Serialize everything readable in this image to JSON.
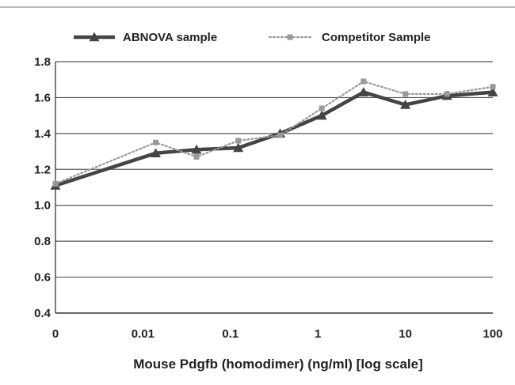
{
  "chart_data": {
    "type": "line",
    "xlabel": "Mouse Pdgfb (homodimer) (ng/ml) [log scale]",
    "ylabel": "",
    "x_scale": "log",
    "x_tick_labels": [
      "0",
      "0.01",
      "0.1",
      "1",
      "10",
      "100"
    ],
    "ylim": [
      0.4,
      1.8
    ],
    "y_ticks": [
      "0.4",
      "0.6",
      "0.8",
      "1.0",
      "1.2",
      "1.4",
      "1.6",
      "1.8"
    ],
    "grid": "horizontal",
    "legend_position": "top",
    "series": [
      {
        "name": "ABNOVA sample",
        "style": "solid",
        "marker": "triangle",
        "color": "#444444",
        "points": [
          {
            "x": 0,
            "y": 1.11
          },
          {
            "x": 0.014,
            "y": 1.29
          },
          {
            "x": 0.041,
            "y": 1.31
          },
          {
            "x": 0.123,
            "y": 1.32
          },
          {
            "x": 0.37,
            "y": 1.4
          },
          {
            "x": 1.11,
            "y": 1.5
          },
          {
            "x": 3.33,
            "y": 1.63
          },
          {
            "x": 10,
            "y": 1.56
          },
          {
            "x": 30,
            "y": 1.61
          },
          {
            "x": 100,
            "y": 1.63
          }
        ]
      },
      {
        "name": "Competitor Sample",
        "style": "dotted",
        "marker": "square",
        "color": "#999999",
        "points": [
          {
            "x": 0,
            "y": 1.12
          },
          {
            "x": 0.014,
            "y": 1.35
          },
          {
            "x": 0.041,
            "y": 1.27
          },
          {
            "x": 0.123,
            "y": 1.36
          },
          {
            "x": 0.37,
            "y": 1.39
          },
          {
            "x": 1.11,
            "y": 1.54
          },
          {
            "x": 3.33,
            "y": 1.69
          },
          {
            "x": 10,
            "y": 1.62
          },
          {
            "x": 30,
            "y": 1.62
          },
          {
            "x": 100,
            "y": 1.66
          }
        ]
      }
    ]
  }
}
